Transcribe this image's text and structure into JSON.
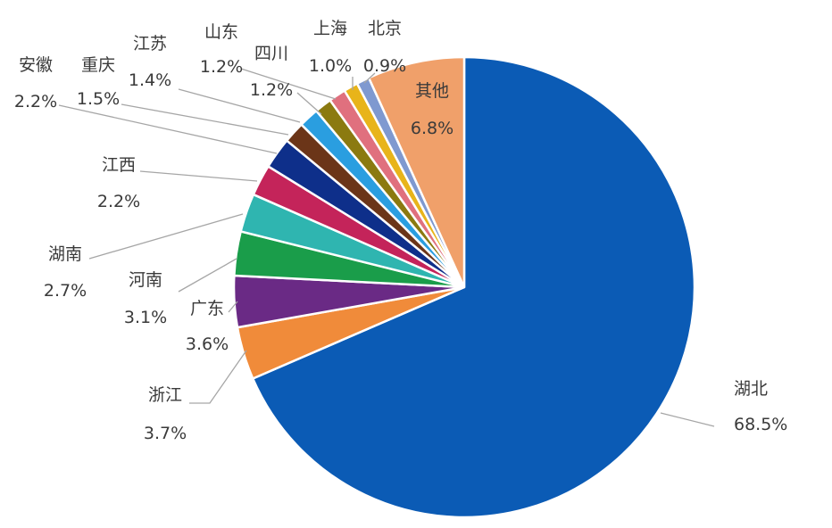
{
  "chart_data": {
    "type": "pie",
    "title": "",
    "start_angle_deg": 0,
    "direction": "clockwise",
    "slices": [
      {
        "name": "湖北",
        "value": 68.5,
        "label": "68.5%",
        "color": "#0b5bb5"
      },
      {
        "name": "浙江",
        "value": 3.7,
        "label": "3.7%",
        "color": "#f08b3a"
      },
      {
        "name": "广东",
        "value": 3.6,
        "label": "3.6%",
        "color": "#6a2a85"
      },
      {
        "name": "河南",
        "value": 3.1,
        "label": "3.1%",
        "color": "#1a9d4a"
      },
      {
        "name": "湖南",
        "value": 2.7,
        "label": "2.7%",
        "color": "#2fb5b0"
      },
      {
        "name": "江西",
        "value": 2.2,
        "label": "2.2%",
        "color": "#c4245a"
      },
      {
        "name": "安徽",
        "value": 2.2,
        "label": "2.2%",
        "color": "#0e2f8a"
      },
      {
        "name": "重庆",
        "value": 1.5,
        "label": "1.5%",
        "color": "#6b3518"
      },
      {
        "name": "江苏",
        "value": 1.4,
        "label": "1.4%",
        "color": "#2a9ee0"
      },
      {
        "name": "四川",
        "value": 1.2,
        "label": "1.2%",
        "color": "#8b7a10"
      },
      {
        "name": "山东",
        "value": 1.2,
        "label": "1.2%",
        "color": "#e0707e"
      },
      {
        "name": "上海",
        "value": 1.0,
        "label": "1.0%",
        "color": "#e8b41a"
      },
      {
        "name": "北京",
        "value": 0.9,
        "label": "0.9%",
        "color": "#7f99d0"
      },
      {
        "name": "其他",
        "value": 6.8,
        "label": "6.8%",
        "color": "#f0a06a"
      }
    ]
  }
}
